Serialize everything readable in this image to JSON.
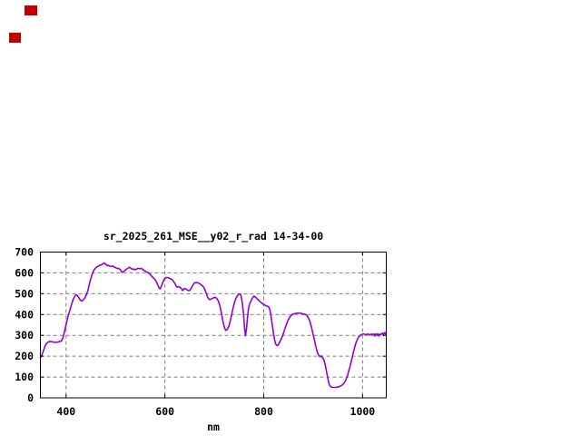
{
  "page": {
    "background": "#ffffff"
  },
  "indicators": [
    {
      "name": "red-indicator-square-1",
      "color": "#c00000"
    },
    {
      "name": "red-indicator-square-2",
      "color": "#c00000"
    }
  ],
  "chart_data": {
    "type": "line",
    "title": "sr_2025_261_MSE__y02_r_rad 14-34-00",
    "xlabel": "nm",
    "ylabel": "",
    "xlim": [
      348,
      1048
    ],
    "ylim": [
      0,
      700
    ],
    "x_ticks": [
      400,
      600,
      800,
      1000
    ],
    "y_ticks": [
      0,
      100,
      200,
      300,
      400,
      500,
      600,
      700
    ],
    "grid": true,
    "legend": "none",
    "line_color": "#9400d3",
    "grid_color": "#7f7f7f",
    "axis_color": "#000000",
    "series": [
      {
        "name": "spectral-radiance",
        "points": [
          [
            348,
            193
          ],
          [
            351,
            205
          ],
          [
            354,
            225
          ],
          [
            357,
            246
          ],
          [
            360,
            260
          ],
          [
            363,
            267
          ],
          [
            367,
            271
          ],
          [
            371,
            270
          ],
          [
            375,
            268
          ],
          [
            379,
            266
          ],
          [
            383,
            268
          ],
          [
            387,
            271
          ],
          [
            390,
            272
          ],
          [
            393,
            285
          ],
          [
            396,
            310
          ],
          [
            399,
            342
          ],
          [
            402,
            372
          ],
          [
            405,
            400
          ],
          [
            408,
            424
          ],
          [
            411,
            448
          ],
          [
            414,
            470
          ],
          [
            417,
            486
          ],
          [
            420,
            495
          ],
          [
            423,
            491
          ],
          [
            426,
            480
          ],
          [
            429,
            468
          ],
          [
            432,
            465
          ],
          [
            435,
            470
          ],
          [
            438,
            480
          ],
          [
            441,
            495
          ],
          [
            444,
            515
          ],
          [
            447,
            545
          ],
          [
            450,
            572
          ],
          [
            453,
            595
          ],
          [
            456,
            612
          ],
          [
            459,
            622
          ],
          [
            462,
            628
          ],
          [
            465,
            632
          ],
          [
            468,
            636
          ],
          [
            471,
            638
          ],
          [
            474,
            642
          ],
          [
            477,
            648
          ],
          [
            480,
            643
          ],
          [
            483,
            635
          ],
          [
            486,
            636
          ],
          [
            489,
            632
          ],
          [
            492,
            631
          ],
          [
            495,
            633
          ],
          [
            498,
            627
          ],
          [
            501,
            624
          ],
          [
            504,
            621
          ],
          [
            507,
            621
          ],
          [
            510,
            615
          ],
          [
            513,
            603
          ],
          [
            516,
            606
          ],
          [
            519,
            611
          ],
          [
            522,
            618
          ],
          [
            525,
            622
          ],
          [
            528,
            627
          ],
          [
            531,
            623
          ],
          [
            534,
            617
          ],
          [
            537,
            619
          ],
          [
            540,
            615
          ],
          [
            543,
            619
          ],
          [
            546,
            622
          ],
          [
            549,
            620
          ],
          [
            552,
            622
          ],
          [
            555,
            617
          ],
          [
            558,
            611
          ],
          [
            561,
            607
          ],
          [
            564,
            603
          ],
          [
            567,
            600
          ],
          [
            570,
            593
          ],
          [
            573,
            584
          ],
          [
            576,
            578
          ],
          [
            579,
            571
          ],
          [
            582,
            560
          ],
          [
            585,
            545
          ],
          [
            588,
            528
          ],
          [
            590,
            523
          ],
          [
            592,
            531
          ],
          [
            594,
            543
          ],
          [
            596,
            556
          ],
          [
            598,
            566
          ],
          [
            600,
            574
          ],
          [
            603,
            578
          ],
          [
            606,
            578
          ],
          [
            609,
            574
          ],
          [
            612,
            571
          ],
          [
            615,
            567
          ],
          [
            618,
            558
          ],
          [
            621,
            545
          ],
          [
            624,
            532
          ],
          [
            627,
            534
          ],
          [
            630,
            532
          ],
          [
            633,
            525
          ],
          [
            636,
            515
          ],
          [
            639,
            525
          ],
          [
            642,
            524
          ],
          [
            645,
            518
          ],
          [
            648,
            514
          ],
          [
            651,
            517
          ],
          [
            654,
            530
          ],
          [
            657,
            543
          ],
          [
            660,
            552
          ],
          [
            663,
            554
          ],
          [
            666,
            553
          ],
          [
            669,
            550
          ],
          [
            672,
            545
          ],
          [
            675,
            540
          ],
          [
            678,
            533
          ],
          [
            681,
            520
          ],
          [
            684,
            500
          ],
          [
            687,
            481
          ],
          [
            690,
            472
          ],
          [
            693,
            474
          ],
          [
            696,
            477
          ],
          [
            699,
            481
          ],
          [
            702,
            483
          ],
          [
            705,
            477
          ],
          [
            708,
            466
          ],
          [
            711,
            445
          ],
          [
            714,
            412
          ],
          [
            717,
            373
          ],
          [
            720,
            341
          ],
          [
            723,
            324
          ],
          [
            726,
            327
          ],
          [
            729,
            342
          ],
          [
            732,
            366
          ],
          [
            735,
            398
          ],
          [
            738,
            432
          ],
          [
            741,
            460
          ],
          [
            744,
            479
          ],
          [
            747,
            491
          ],
          [
            750,
            499
          ],
          [
            753,
            497
          ],
          [
            755,
            480
          ],
          [
            757,
            450
          ],
          [
            759,
            405
          ],
          [
            761,
            341
          ],
          [
            763,
            298
          ],
          [
            765,
            330
          ],
          [
            767,
            384
          ],
          [
            769,
            425
          ],
          [
            771,
            448
          ],
          [
            774,
            464
          ],
          [
            777,
            479
          ],
          [
            780,
            488
          ],
          [
            783,
            484
          ],
          [
            786,
            477
          ],
          [
            789,
            470
          ],
          [
            792,
            463
          ],
          [
            795,
            457
          ],
          [
            798,
            452
          ],
          [
            801,
            447
          ],
          [
            804,
            443
          ],
          [
            807,
            440
          ],
          [
            810,
            437
          ],
          [
            812,
            427
          ],
          [
            814,
            405
          ],
          [
            816,
            373
          ],
          [
            818,
            340
          ],
          [
            820,
            306
          ],
          [
            822,
            278
          ],
          [
            824,
            260
          ],
          [
            826,
            252
          ],
          [
            828,
            251
          ],
          [
            830,
            257
          ],
          [
            832,
            266
          ],
          [
            835,
            280
          ],
          [
            838,
            297
          ],
          [
            841,
            318
          ],
          [
            844,
            340
          ],
          [
            847,
            360
          ],
          [
            850,
            377
          ],
          [
            853,
            389
          ],
          [
            856,
            397
          ],
          [
            859,
            402
          ],
          [
            862,
            404
          ],
          [
            866,
            406
          ],
          [
            870,
            407
          ],
          [
            874,
            407
          ],
          [
            878,
            404
          ],
          [
            882,
            402
          ],
          [
            885,
            400
          ],
          [
            888,
            394
          ],
          [
            891,
            381
          ],
          [
            894,
            362
          ],
          [
            897,
            335
          ],
          [
            900,
            305
          ],
          [
            903,
            272
          ],
          [
            906,
            241
          ],
          [
            909,
            215
          ],
          [
            912,
            202
          ],
          [
            914,
            198
          ],
          [
            916,
            202
          ],
          [
            918,
            195
          ],
          [
            920,
            190
          ],
          [
            922,
            181
          ],
          [
            924,
            163
          ],
          [
            926,
            140
          ],
          [
            928,
            115
          ],
          [
            930,
            90
          ],
          [
            932,
            68
          ],
          [
            934,
            57
          ],
          [
            937,
            52
          ],
          [
            940,
            50
          ],
          [
            944,
            50
          ],
          [
            948,
            51
          ],
          [
            952,
            53
          ],
          [
            956,
            57
          ],
          [
            960,
            64
          ],
          [
            963,
            72
          ],
          [
            966,
            85
          ],
          [
            969,
            103
          ],
          [
            972,
            127
          ],
          [
            975,
            154
          ],
          [
            978,
            183
          ],
          [
            981,
            214
          ],
          [
            984,
            243
          ],
          [
            987,
            266
          ],
          [
            990,
            283
          ],
          [
            993,
            294
          ],
          [
            996,
            301
          ],
          [
            999,
            305
          ],
          [
            1002,
            307
          ],
          [
            1005,
            305
          ],
          [
            1008,
            303
          ],
          [
            1011,
            307
          ],
          [
            1014,
            302
          ],
          [
            1017,
            306
          ],
          [
            1020,
            303
          ],
          [
            1023,
            307
          ],
          [
            1025,
            297
          ],
          [
            1027,
            308
          ],
          [
            1029,
            300
          ],
          [
            1031,
            308
          ],
          [
            1033,
            297
          ],
          [
            1035,
            306
          ],
          [
            1037,
            303
          ],
          [
            1040,
            311
          ],
          [
            1042,
            303
          ],
          [
            1044,
            313
          ],
          [
            1046,
            307
          ],
          [
            1048,
            317
          ]
        ]
      }
    ]
  }
}
